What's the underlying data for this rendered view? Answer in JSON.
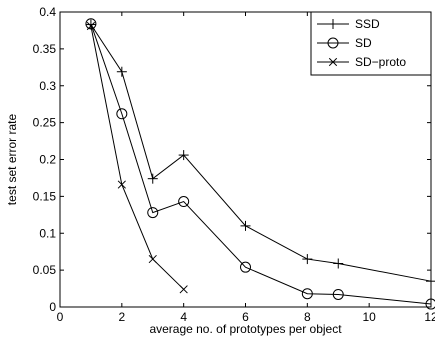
{
  "chart_data": {
    "type": "line",
    "xlabel": "average no. of prototypes per object",
    "ylabel": "test set error rate",
    "xlim": [
      0,
      12
    ],
    "ylim": [
      0,
      0.4
    ],
    "x_ticks": [
      0,
      2,
      4,
      6,
      8,
      10,
      12
    ],
    "x_tick_labels": [
      "0",
      "2",
      "4",
      "6",
      "8",
      "10",
      "12"
    ],
    "y_ticks": [
      0,
      0.05,
      0.1,
      0.15,
      0.2,
      0.25,
      0.3,
      0.35,
      0.4
    ],
    "y_tick_labels": [
      "0",
      "0.05",
      "0.1",
      "0.15",
      "0.2",
      "0.25",
      "0.3",
      "0.35",
      "0.4"
    ],
    "legend_position": "top-right",
    "grid": false,
    "series": [
      {
        "name": "SSD",
        "marker": "plus",
        "x": [
          1,
          2,
          3,
          4,
          6,
          8,
          9,
          12
        ],
        "y": [
          0.383,
          0.319,
          0.174,
          0.206,
          0.11,
          0.065,
          0.059,
          0.035
        ]
      },
      {
        "name": "SD",
        "marker": "circle",
        "x": [
          1,
          2,
          3,
          4,
          6,
          8,
          9,
          12
        ],
        "y": [
          0.384,
          0.262,
          0.128,
          0.143,
          0.054,
          0.018,
          0.017,
          0.004
        ]
      },
      {
        "name": "SD−proto",
        "marker": "cross",
        "x": [
          1,
          2,
          3,
          4
        ],
        "y": [
          0.381,
          0.166,
          0.065,
          0.024
        ]
      }
    ]
  }
}
